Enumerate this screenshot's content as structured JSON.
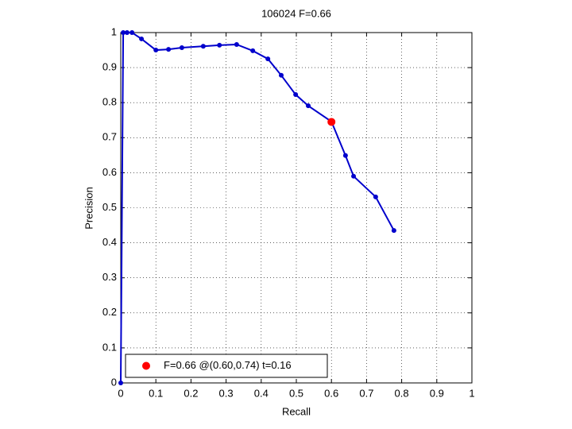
{
  "chart_data": {
    "type": "line",
    "title": "106024 F=0.66",
    "xlabel": "Recall",
    "ylabel": "Precision",
    "series": [
      {
        "color": "#0000cc",
        "x": [
          0,
          0.007,
          0.018,
          0.032,
          0.059,
          0.1,
          0.136,
          0.174,
          0.235,
          0.281,
          0.33,
          0.376,
          0.419,
          0.457,
          0.498,
          0.534,
          0.6,
          0.64,
          0.663,
          0.726,
          0.778
        ],
        "values": [
          0,
          1,
          1,
          1,
          0.982,
          0.95,
          0.952,
          0.957,
          0.961,
          0.964,
          0.966,
          0.948,
          0.925,
          0.878,
          0.823,
          0.791,
          0.746,
          0.649,
          0.59,
          0.531,
          0.435
        ]
      },
      {
        "name": "F=0.66 @(0.60,0.74) t=0.16",
        "color": "#ff0000",
        "x": [
          0.6
        ],
        "values": [
          0.745
        ]
      }
    ],
    "xlim": [
      0,
      1
    ],
    "xticks": [
      0,
      0.1,
      0.2,
      0.3,
      0.4,
      0.5,
      0.6,
      0.7,
      0.8,
      0.9,
      1
    ],
    "ylim": [
      0,
      1
    ],
    "yticks": [
      0,
      0.1,
      0.2,
      0.3,
      0.4,
      0.5,
      0.6,
      0.7,
      0.8,
      0.9,
      1
    ],
    "grid": true,
    "legend": "lower left"
  }
}
